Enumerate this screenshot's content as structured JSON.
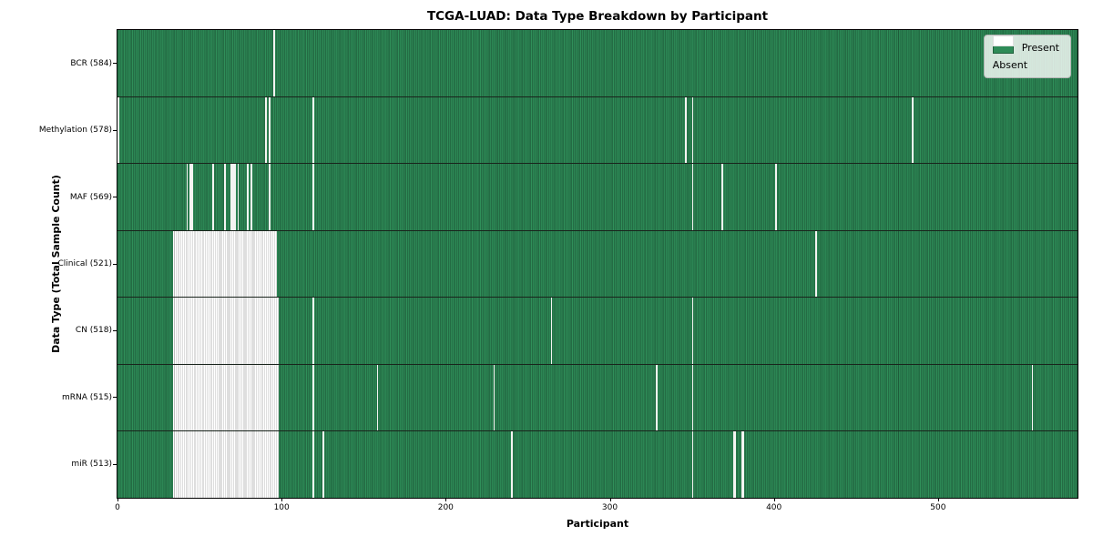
{
  "chart_data": {
    "type": "heatmap",
    "title": "TCGA-LUAD: Data Type Breakdown by Participant",
    "xlabel": "Participant",
    "ylabel": "Data Type (Total Sample Count)",
    "x_range": [
      0,
      585
    ],
    "x_ticks": [
      0,
      100,
      200,
      300,
      400,
      500
    ],
    "n_participants": 585,
    "grid": false,
    "legend_position": "upper right",
    "legend": {
      "items": [
        {
          "label": "Present",
          "color": "#2e8b57"
        },
        {
          "label": "Absent",
          "color": "#ffffff"
        }
      ]
    },
    "colors": {
      "present": "#2e8b57",
      "present_edge": "#1e5c3a",
      "absent": "#ffffff",
      "absent_edge": "#bdbdbd",
      "row_separator": "#19241c",
      "axis": "#000000"
    },
    "rows": [
      {
        "label": "BCR (584)",
        "data_type": "BCR",
        "present_count": 584,
        "absent_ranges": [
          [
            95,
            95
          ]
        ]
      },
      {
        "label": "Methylation (578)",
        "data_type": "Methylation",
        "present_count": 578,
        "absent_ranges": [
          [
            0,
            0
          ],
          [
            90,
            90
          ],
          [
            92,
            92
          ],
          [
            119,
            119
          ],
          [
            346,
            346
          ],
          [
            350,
            350
          ],
          [
            484,
            484
          ]
        ]
      },
      {
        "label": "MAF (569)",
        "data_type": "MAF",
        "present_count": 569,
        "absent_ranges": [
          [
            42,
            42
          ],
          [
            44,
            45
          ],
          [
            58,
            58
          ],
          [
            65,
            65
          ],
          [
            69,
            71
          ],
          [
            73,
            73
          ],
          [
            79,
            79
          ],
          [
            81,
            81
          ],
          [
            92,
            92
          ],
          [
            119,
            119
          ],
          [
            350,
            350
          ],
          [
            368,
            368
          ],
          [
            401,
            401
          ]
        ]
      },
      {
        "label": "Clinical (521)",
        "data_type": "Clinical",
        "present_count": 521,
        "absent_ranges": [
          [
            34,
            96
          ],
          [
            425,
            425
          ]
        ]
      },
      {
        "label": "CN (518)",
        "data_type": "CN",
        "present_count": 518,
        "absent_ranges": [
          [
            34,
            97
          ],
          [
            119,
            119
          ],
          [
            264,
            264
          ],
          [
            350,
            350
          ]
        ]
      },
      {
        "label": "mRNA (515)",
        "data_type": "mRNA",
        "present_count": 515,
        "absent_ranges": [
          [
            34,
            97
          ],
          [
            119,
            119
          ],
          [
            158,
            158
          ],
          [
            229,
            229
          ],
          [
            328,
            328
          ],
          [
            350,
            350
          ],
          [
            557,
            557
          ]
        ]
      },
      {
        "label": "miR (513)",
        "data_type": "miR",
        "present_count": 513,
        "absent_ranges": [
          [
            34,
            97
          ],
          [
            119,
            119
          ],
          [
            125,
            125
          ],
          [
            240,
            240
          ],
          [
            350,
            350
          ],
          [
            375,
            376
          ],
          [
            380,
            381
          ]
        ]
      }
    ]
  }
}
